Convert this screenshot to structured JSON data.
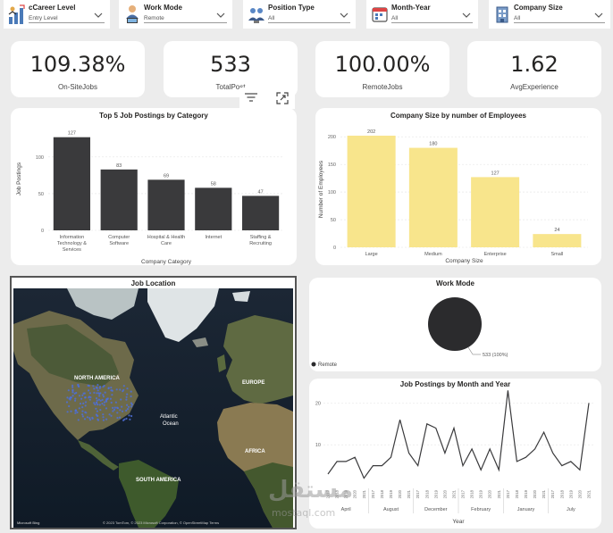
{
  "slicers": [
    {
      "title": "‎cCareer Level",
      "value": "Entry Level",
      "icon": "career-ladder-icon"
    },
    {
      "title": "Work Mode",
      "value": "Remote",
      "icon": "work-mode-icon"
    },
    {
      "title": "Position Type",
      "value": "All",
      "icon": "position-type-icon"
    },
    {
      "title": "Month-Year",
      "value": "All",
      "icon": "calendar-icon"
    },
    {
      "title": "Company Size",
      "value": "All",
      "icon": "company-building-icon"
    }
  ],
  "kpis": [
    {
      "value": "109.38%",
      "label": "On-SiteJobs"
    },
    {
      "value": "533",
      "label": "TotalPost"
    },
    {
      "value": "100.00%",
      "label": "RemoteJobs"
    },
    {
      "value": "1.62",
      "label": "AvgExperience"
    }
  ],
  "visual_header": {
    "icons": [
      "filter-icon",
      "focus-mode-icon"
    ]
  },
  "map": {
    "title": "Job Location",
    "labels": [
      "NORTH AMERICA",
      "EUROPE",
      "Atlantic",
      "Ocean",
      "AFRICA",
      "SOUTH AMERICA"
    ],
    "logo": "Microsoft Bing",
    "attribution": "© 2023 TomTom, © 2023 Microsoft Corporation, © OpenStreetMap Terms"
  },
  "watermark": {
    "text": "mostaql.com",
    "logo_text": "مستقل"
  },
  "chart_data": [
    {
      "type": "bar",
      "title": "Top 5 Job Postings by Category",
      "xlabel": "Company Category",
      "ylabel": "Job Postings",
      "categories": [
        "Information Technology & Services",
        "Computer Software",
        "Hospital & Health Care",
        "Internet",
        "Staffing & Recruiting"
      ],
      "category_lines": [
        [
          "Information",
          "Technology &",
          "Services"
        ],
        [
          "Computer",
          "Software"
        ],
        [
          "Hospital & Health",
          "Care"
        ],
        [
          "Internet"
        ],
        [
          "Staffing &",
          "Recruiting"
        ]
      ],
      "values": [
        127,
        83,
        69,
        58,
        47
      ],
      "yticks": [
        0,
        50,
        100
      ],
      "ylim": [
        0,
        140
      ],
      "color": "#3a3a3c",
      "grid": true
    },
    {
      "type": "bar",
      "title": "Company Size by number of Employees",
      "xlabel": "Company Size",
      "ylabel": "Number of Employees",
      "categories": [
        "Large",
        "Medium",
        "Enterprise",
        "Small"
      ],
      "values": [
        202,
        180,
        127,
        24
      ],
      "yticks": [
        0,
        50,
        100,
        150,
        200
      ],
      "ylim": [
        0,
        210
      ],
      "color": "#f8e58c",
      "grid": true
    },
    {
      "type": "pie",
      "title": "Work Mode",
      "slices": [
        {
          "name": "Remote",
          "value": 533,
          "label": "533 (100%)"
        }
      ],
      "legend": "bottom-left",
      "color": "#2b2b2d"
    },
    {
      "type": "line",
      "title": "Job Postings by Month and Year",
      "xlabel": "Year",
      "ylim": [
        0,
        22
      ],
      "yticks": [
        10,
        20
      ],
      "year_labels": [
        "2017",
        "2018",
        "2019",
        "2020",
        "2021",
        "2017",
        "2018",
        "2019",
        "2020",
        "2021",
        "2017",
        "2018",
        "2019",
        "2020",
        "2021",
        "2017",
        "2018",
        "2019",
        "2020",
        "2021",
        "2017",
        "2018",
        "2019",
        "2020",
        "2021",
        "2017",
        "2018",
        "2019",
        "2020",
        "2021"
      ],
      "months": [
        "April",
        "August",
        "December",
        "February",
        "January",
        "July"
      ],
      "values": [
        3,
        6,
        6,
        7,
        2,
        5,
        5,
        7,
        16,
        8,
        5,
        15,
        14,
        8,
        14,
        5,
        9,
        4,
        9,
        4,
        23,
        6,
        7,
        9,
        13,
        8,
        5,
        6,
        4,
        20
      ],
      "color": "#3a3a3c",
      "grid": true
    }
  ]
}
